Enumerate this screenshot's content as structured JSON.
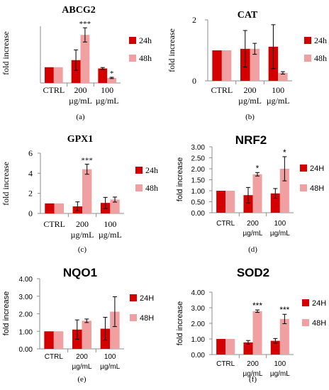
{
  "colors": {
    "h24": "#d40000",
    "h48": "#f0a0a0",
    "axis": "#8c8c8c",
    "text": "#000000",
    "error_bar": "#000000"
  },
  "chart_data": [
    {
      "id": "abcg2",
      "type": "bar",
      "title": "ABCG2",
      "panel_label": "(a)",
      "style": "serif",
      "xlabel": "",
      "ylabel": "fold increase",
      "categories": [
        [
          "CTRL"
        ],
        [
          "200",
          "µg/mL"
        ],
        [
          "100",
          "µg/mL"
        ]
      ],
      "ylim": [
        0,
        3.6
      ],
      "yticks": [],
      "ytick_labels": [],
      "series": [
        {
          "name": "24h",
          "color": "#d40000",
          "values": [
            1.0,
            1.45,
            0.92
          ],
          "errors": [
            0,
            0.65,
            0.06
          ]
        },
        {
          "name": "48h",
          "color": "#f0a0a0",
          "values": [
            1.0,
            3.05,
            0.32
          ],
          "errors": [
            0,
            0.45,
            0.04
          ]
        }
      ],
      "annotations": [
        {
          "category": 1,
          "series": 1,
          "text": "***"
        },
        {
          "category": 2,
          "series": 1,
          "text": "*"
        }
      ]
    },
    {
      "id": "cat",
      "type": "bar",
      "title": "CAT",
      "panel_label": "(b)",
      "style": "serif",
      "xlabel": "",
      "ylabel": "fold increase",
      "categories": [
        [
          "CTRL"
        ],
        [
          "200",
          "µg/mL"
        ],
        [
          "100",
          "µg/mL"
        ]
      ],
      "ylim": [
        0,
        2
      ],
      "yticks": [
        0,
        2
      ],
      "ytick_labels": [
        "0",
        "2"
      ],
      "series": [
        {
          "name": "24h",
          "color": "#d40000",
          "values": [
            1.0,
            1.05,
            1.12
          ],
          "errors": [
            0,
            0.6,
            0.72
          ]
        },
        {
          "name": "48h",
          "color": "#f0a0a0",
          "values": [
            1.0,
            1.05,
            0.26
          ],
          "errors": [
            0,
            0.18,
            0.04
          ]
        }
      ],
      "annotations": []
    },
    {
      "id": "gpx1",
      "type": "bar",
      "title": "GPX1",
      "panel_label": "(c)",
      "style": "serif",
      "xlabel": "",
      "ylabel": "fold increase",
      "categories": [
        [
          "CTRL"
        ],
        [
          "200",
          "µg/mL"
        ],
        [
          "100",
          "µg/mL"
        ]
      ],
      "ylim": [
        0,
        6
      ],
      "yticks": [
        0,
        2,
        4,
        6
      ],
      "ytick_labels": [
        "0",
        "2",
        "4",
        "6"
      ],
      "series": [
        {
          "name": "24h",
          "color": "#d40000",
          "values": [
            1.0,
            0.7,
            1.05
          ],
          "errors": [
            0,
            0.45,
            0.55
          ]
        },
        {
          "name": "48h",
          "color": "#f0a0a0",
          "values": [
            1.0,
            4.4,
            1.38
          ],
          "errors": [
            0,
            0.5,
            0.25
          ]
        }
      ],
      "annotations": [
        {
          "category": 1,
          "series": 1,
          "text": "***"
        }
      ]
    },
    {
      "id": "nrf2",
      "type": "bar",
      "title": "NRF2",
      "panel_label": "(d)",
      "style": "sans",
      "xlabel": "",
      "ylabel": "fold increase",
      "categories": [
        [
          "CTRL"
        ],
        [
          "200",
          "µg/mL"
        ],
        [
          "100",
          "µg/mL"
        ]
      ],
      "ylim": [
        0,
        3.0
      ],
      "yticks": [
        0,
        0.5,
        1,
        1.5,
        2,
        2.5,
        3
      ],
      "ytick_labels": [
        "0.00",
        "0.50",
        "1.00",
        "1.50",
        "2.00",
        "2.50",
        "3.00"
      ],
      "series": [
        {
          "name": "24H",
          "color": "#d40000",
          "values": [
            1.0,
            0.8,
            0.88
          ],
          "errors": [
            0,
            0.35,
            0.22
          ]
        },
        {
          "name": "48H",
          "color": "#f0a0a0",
          "values": [
            1.0,
            1.75,
            2.0
          ],
          "errors": [
            0,
            0.08,
            0.55
          ]
        }
      ],
      "annotations": [
        {
          "category": 1,
          "series": 1,
          "text": "*"
        },
        {
          "category": 2,
          "series": 1,
          "text": "*"
        }
      ]
    },
    {
      "id": "nqo1",
      "type": "bar",
      "title": "NQO1",
      "panel_label": "(e)",
      "style": "sans",
      "xlabel": "",
      "ylabel": "fold increase",
      "categories": [
        [
          "CTRL"
        ],
        [
          "200",
          "µg/mL"
        ],
        [
          "100",
          "µg/mL"
        ]
      ],
      "ylim": [
        0,
        4.0
      ],
      "yticks": [
        0,
        1,
        2,
        3,
        4
      ],
      "ytick_labels": [
        "0.00",
        "1.00",
        "2.00",
        "3.00",
        "4.00"
      ],
      "series": [
        {
          "name": "24H",
          "color": "#d40000",
          "values": [
            1.0,
            1.1,
            1.15
          ],
          "errors": [
            0,
            0.55,
            0.65
          ]
        },
        {
          "name": "48H",
          "color": "#f0a0a0",
          "values": [
            1.0,
            1.6,
            2.12
          ],
          "errors": [
            0,
            0.1,
            0.85
          ]
        }
      ],
      "annotations": []
    },
    {
      "id": "sod2",
      "type": "bar",
      "title": "SOD2",
      "panel_label": "(f)",
      "style": "sans",
      "xlabel": "",
      "ylabel": "fold increase",
      "categories": [
        [
          "CTRL"
        ],
        [
          "200",
          "µg/mL"
        ],
        [
          "100",
          "µg/mL"
        ]
      ],
      "ylim": [
        0,
        4.0
      ],
      "yticks": [
        0,
        1,
        2,
        3,
        4
      ],
      "ytick_labels": [
        "0.00",
        "1.00",
        "2.00",
        "3.00",
        "4.00"
      ],
      "series": [
        {
          "name": "24H",
          "color": "#d40000",
          "values": [
            1.0,
            0.78,
            0.88
          ],
          "errors": [
            0,
            0.12,
            0.15
          ]
        },
        {
          "name": "48H",
          "color": "#f0a0a0",
          "values": [
            1.0,
            2.78,
            2.28
          ],
          "errors": [
            0,
            0.08,
            0.3
          ]
        }
      ],
      "annotations": [
        {
          "category": 1,
          "series": 1,
          "text": "***"
        },
        {
          "category": 2,
          "series": 1,
          "text": "***"
        }
      ]
    }
  ]
}
